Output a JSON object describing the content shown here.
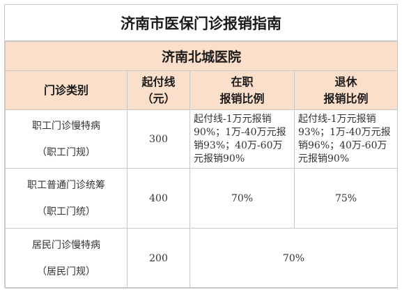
{
  "title": "济南市医保门诊报销指南",
  "hospital": "济南北城医院",
  "headers": {
    "category": "门诊类别",
    "deductible_line1": "起付线",
    "deductible_line2": "（元）",
    "employed_line1": "在职",
    "employed_line2": "报销比例",
    "retired_line1": "退休",
    "retired_line2": "报销比例"
  },
  "rows": [
    {
      "category_line1": "职工门诊慢特病",
      "category_line2": "（职工门规）",
      "deductible": "300",
      "employed": "起付线-1万元报销90%；1万-40万元报销93%；40万-60万元报销90%",
      "retired": "起付线-1万元报销93%；1万-40万元报销96%；40万-60万元报销90%"
    },
    {
      "category_line1": "职工普通门诊统筹",
      "category_line2": "（职工门统）",
      "deductible": "400",
      "employed": "70%",
      "retired": "75%"
    },
    {
      "category_line1": "居民门诊慢特病",
      "category_line2": "（居民门规）",
      "deductible": "200",
      "combined": "70%"
    }
  ]
}
